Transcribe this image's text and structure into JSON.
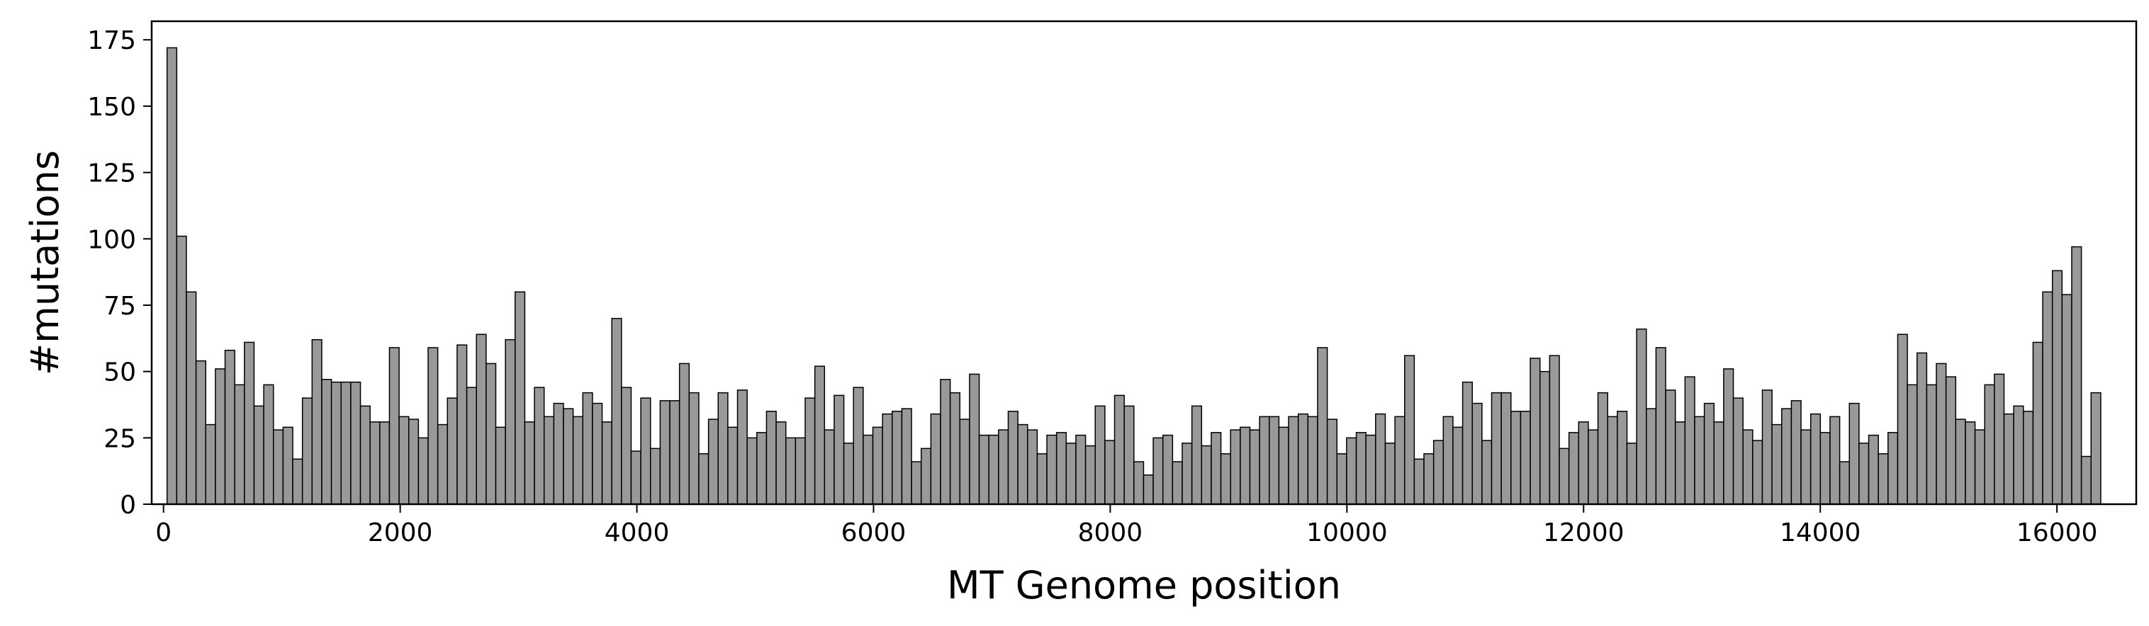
{
  "chart_data": {
    "type": "bar",
    "title": "",
    "xlabel": "MT Genome position",
    "ylabel": "#mutations",
    "xlim": [
      -100,
      16670
    ],
    "ylim": [
      0,
      182
    ],
    "xticks": [
      0,
      2000,
      4000,
      6000,
      8000,
      10000,
      12000,
      14000,
      16000
    ],
    "yticks": [
      0,
      25,
      50,
      75,
      100,
      125,
      150,
      175
    ],
    "grid": false,
    "legend": "none",
    "bar_color": "#999999",
    "edge_color": "#000000",
    "bin_width": 81.7,
    "bin_start": 30,
    "values": [
      172,
      101,
      80,
      54,
      30,
      51,
      58,
      45,
      61,
      37,
      45,
      28,
      29,
      17,
      40,
      62,
      47,
      46,
      46,
      46,
      37,
      31,
      31,
      59,
      33,
      32,
      25,
      59,
      30,
      40,
      60,
      44,
      64,
      53,
      29,
      62,
      80,
      31,
      44,
      33,
      38,
      36,
      33,
      42,
      38,
      31,
      70,
      44,
      20,
      40,
      21,
      39,
      39,
      53,
      42,
      19,
      32,
      42,
      29,
      43,
      25,
      27,
      35,
      31,
      25,
      25,
      40,
      52,
      28,
      41,
      23,
      44,
      26,
      29,
      34,
      35,
      36,
      16,
      21,
      34,
      47,
      42,
      32,
      49,
      26,
      26,
      28,
      35,
      30,
      28,
      19,
      26,
      27,
      23,
      26,
      22,
      37,
      24,
      41,
      37,
      16,
      11,
      25,
      26,
      16,
      23,
      37,
      22,
      27,
      19,
      28,
      29,
      28,
      33,
      33,
      29,
      33,
      34,
      33,
      59,
      32,
      19,
      25,
      27,
      26,
      34,
      23,
      33,
      56,
      17,
      19,
      24,
      33,
      29,
      46,
      38,
      24,
      42,
      42,
      35,
      35,
      55,
      50,
      56,
      21,
      27,
      31,
      28,
      42,
      33,
      35,
      23,
      66,
      36,
      59,
      43,
      31,
      48,
      33,
      38,
      31,
      51,
      40,
      28,
      24,
      43,
      30,
      36,
      39,
      28,
      34,
      27,
      33,
      16,
      38,
      23,
      26,
      19,
      27,
      64,
      45,
      57,
      45,
      53,
      48,
      32,
      31,
      28,
      45,
      49,
      34,
      37,
      35,
      61,
      80,
      88,
      79,
      97,
      18,
      42
    ]
  }
}
